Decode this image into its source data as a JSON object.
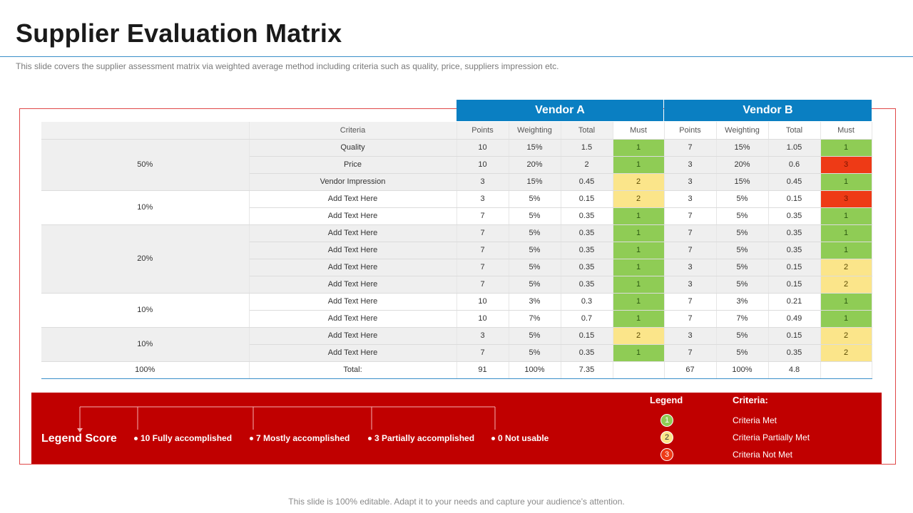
{
  "title": "Supplier Evaluation Matrix",
  "subtitle": "This slide covers the supplier  assessment matrix via weighted average  method including criteria such as quality, price, suppliers impression etc.",
  "vendors": [
    "Vendor A",
    "Vendor B"
  ],
  "headers": {
    "criteria": "Criteria",
    "points": "Points",
    "weighting": "Weighting",
    "total": "Total",
    "must": "Must"
  },
  "groups": [
    {
      "label": "50%",
      "rows": [
        0,
        1,
        2
      ]
    },
    {
      "label": "10%",
      "rows": [
        3,
        4
      ]
    },
    {
      "label": "20%",
      "rows": [
        5,
        6,
        7,
        8
      ]
    },
    {
      "label": "10%",
      "rows": [
        9,
        10
      ]
    },
    {
      "label": "10%",
      "rows": [
        11,
        12
      ]
    }
  ],
  "rows": [
    {
      "criteria": "Quality",
      "a": [
        "10",
        "15%",
        "1.5",
        "1"
      ],
      "b": [
        "7",
        "15%",
        "1.05",
        "1"
      ]
    },
    {
      "criteria": "Price",
      "a": [
        "10",
        "20%",
        "2",
        "1"
      ],
      "b": [
        "3",
        "20%",
        "0.6",
        "3"
      ]
    },
    {
      "criteria": "Vendor Impression",
      "a": [
        "3",
        "15%",
        "0.45",
        "2"
      ],
      "b": [
        "3",
        "15%",
        "0.45",
        "1"
      ]
    },
    {
      "criteria": "Add Text Here",
      "a": [
        "3",
        "5%",
        "0.15",
        "2"
      ],
      "b": [
        "3",
        "5%",
        "0.15",
        "3"
      ]
    },
    {
      "criteria": "Add Text Here",
      "a": [
        "7",
        "5%",
        "0.35",
        "1"
      ],
      "b": [
        "7",
        "5%",
        "0.35",
        "1"
      ]
    },
    {
      "criteria": "Add Text Here",
      "a": [
        "7",
        "5%",
        "0.35",
        "1"
      ],
      "b": [
        "7",
        "5%",
        "0.35",
        "1"
      ]
    },
    {
      "criteria": "Add Text Here",
      "a": [
        "7",
        "5%",
        "0.35",
        "1"
      ],
      "b": [
        "7",
        "5%",
        "0.35",
        "1"
      ]
    },
    {
      "criteria": "Add Text Here",
      "a": [
        "7",
        "5%",
        "0.35",
        "1"
      ],
      "b": [
        "3",
        "5%",
        "0.15",
        "2"
      ]
    },
    {
      "criteria": "Add Text Here",
      "a": [
        "7",
        "5%",
        "0.35",
        "1"
      ],
      "b": [
        "3",
        "5%",
        "0.15",
        "2"
      ]
    },
    {
      "criteria": "Add Text Here",
      "a": [
        "10",
        "3%",
        "0.3",
        "1"
      ],
      "b": [
        "7",
        "3%",
        "0.21",
        "1"
      ]
    },
    {
      "criteria": "Add Text Here",
      "a": [
        "10",
        "7%",
        "0.7",
        "1"
      ],
      "b": [
        "7",
        "7%",
        "0.49",
        "1"
      ]
    },
    {
      "criteria": "Add Text Here",
      "a": [
        "3",
        "5%",
        "0.15",
        "2"
      ],
      "b": [
        "3",
        "5%",
        "0.15",
        "2"
      ]
    },
    {
      "criteria": "Add Text Here",
      "a": [
        "7",
        "5%",
        "0.35",
        "1"
      ],
      "b": [
        "7",
        "5%",
        "0.35",
        "2"
      ]
    }
  ],
  "total_row": {
    "group": "100%",
    "label": "Total:",
    "a": [
      "91",
      "100%",
      "7.35",
      ""
    ],
    "b": [
      "67",
      "100%",
      "4.8",
      ""
    ]
  },
  "legend_score": {
    "title": "Legend Score",
    "items": [
      "10 Fully  accomplished",
      "7 Mostly accomplished",
      "3 Partially accomplished",
      "0 Not usable"
    ]
  },
  "legend": {
    "legend_header": "Legend",
    "criteria_header": "Criteria:",
    "items": [
      {
        "badge": "1",
        "label": "Criteria Met"
      },
      {
        "badge": "2",
        "label": "Criteria Partially Met"
      },
      {
        "badge": "3",
        "label": "Criteria Not Met"
      }
    ]
  },
  "colors": {
    "vendor_header": "#0a7fc2",
    "must_1": "#8fcc55",
    "must_2": "#fbe58a",
    "must_3": "#ee3a16",
    "legend_bar": "#c00000",
    "frame": "#e04848"
  },
  "footer": "This slide is 100% editable. Adapt it to your needs and capture your audience’s attention."
}
